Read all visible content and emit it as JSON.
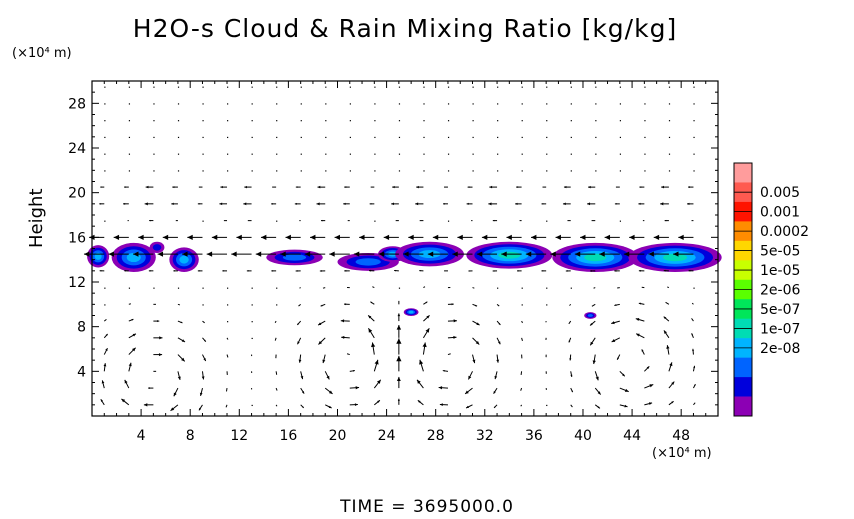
{
  "chart_data": {
    "type": "heatmap",
    "title": "H2O-s Cloud & Rain Mixing Ratio [kg/kg]",
    "ylabel": "Height",
    "x_unit": "(×10⁴ m)",
    "y_unit": "(×10⁴ m)",
    "xlim": [
      0,
      51
    ],
    "ylim": [
      0,
      30
    ],
    "x_ticks": [
      "4",
      "8",
      "12",
      "16",
      "20",
      "24",
      "28",
      "32",
      "36",
      "40",
      "44",
      "48"
    ],
    "y_ticks": [
      "4",
      "8",
      "12",
      "16",
      "20",
      "24",
      "28"
    ],
    "colorbar": {
      "labels": [
        "0.005",
        "0.001",
        "0.0002",
        "5e-05",
        "1e-05",
        "2e-06",
        "5e-07",
        "1e-07",
        "2e-08"
      ],
      "colors": [
        "#ff9c9c",
        "#ff5a50",
        "#ff1400",
        "#ff8c00",
        "#ffd700",
        "#c8ff00",
        "#5aff00",
        "#00e65a",
        "#00dcb4",
        "#00b4ff",
        "#0064ff",
        "#0000dc",
        "#8c00b4"
      ]
    },
    "cloud_regions": [
      {
        "x": 0.5,
        "y": 14.3,
        "rx": 0.9,
        "ry": 1.0,
        "level": 4
      },
      {
        "x": 3.4,
        "y": 14.2,
        "rx": 1.8,
        "ry": 1.3,
        "level": 4
      },
      {
        "x": 5.3,
        "y": 15.1,
        "rx": 0.6,
        "ry": 0.5,
        "level": 2
      },
      {
        "x": 7.5,
        "y": 14.0,
        "rx": 1.2,
        "ry": 1.1,
        "level": 4
      },
      {
        "x": 16.5,
        "y": 14.2,
        "rx": 2.3,
        "ry": 0.7,
        "level": 3
      },
      {
        "x": 22.5,
        "y": 13.8,
        "rx": 2.5,
        "ry": 0.8,
        "level": 3
      },
      {
        "x": 24.5,
        "y": 14.5,
        "rx": 1.2,
        "ry": 0.7,
        "level": 4
      },
      {
        "x": 27.5,
        "y": 14.5,
        "rx": 2.8,
        "ry": 1.1,
        "level": 4
      },
      {
        "x": 34.0,
        "y": 14.4,
        "rx": 3.5,
        "ry": 1.2,
        "level": 5
      },
      {
        "x": 41.0,
        "y": 14.2,
        "rx": 3.5,
        "ry": 1.3,
        "level": 5
      },
      {
        "x": 47.5,
        "y": 14.2,
        "rx": 3.8,
        "ry": 1.3,
        "level": 5
      },
      {
        "x": 26.0,
        "y": 9.3,
        "rx": 0.6,
        "ry": 0.35,
        "level": 4
      },
      {
        "x": 40.6,
        "y": 9.0,
        "rx": 0.5,
        "ry": 0.3,
        "level": 3
      }
    ],
    "wind_regions": [
      {
        "x": 5,
        "y": 3.5,
        "rotation": "clockwise"
      },
      {
        "x": 21,
        "y": 5,
        "rotation": "counterclockwise"
      },
      {
        "x": 29,
        "y": 5,
        "rotation": "clockwise"
      },
      {
        "x": 44,
        "y": 5,
        "rotation": "counterclockwise"
      }
    ]
  },
  "time_label": "TIME  =  3695000.0"
}
